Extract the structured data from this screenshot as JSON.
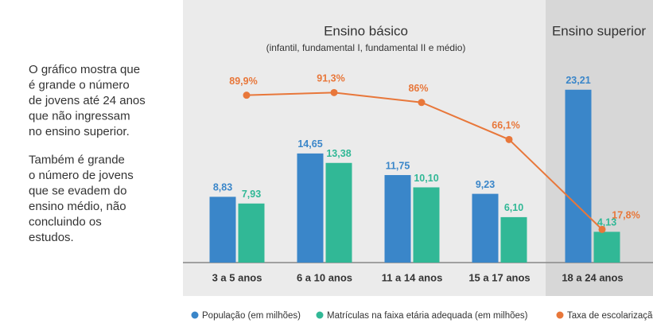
{
  "sidebar": {
    "paragraphs": [
      [
        "O gráfico mostra que",
        "é grande o número",
        "de jovens até 24 anos",
        "que não ingressam",
        "no ensino superior."
      ],
      [
        "Também é grande",
        "o número de jovens",
        "que se evadem do",
        "ensino médio, não",
        "concluindo os",
        "estudos."
      ]
    ]
  },
  "chart_data": {
    "type": "bar",
    "groups": [
      {
        "label": "Ensino básico",
        "subtitle": "(infantil, fundamental I, fundamental II e médio)"
      },
      {
        "label": "Ensino superior"
      }
    ],
    "categories": [
      "3 a 5 anos",
      "6 a 10 anos",
      "11 a 14 anos",
      "15 a 17 anos",
      "18 a 24 anos"
    ],
    "series": [
      {
        "name": "População (em milhões)",
        "color": "#3a86c9",
        "type": "bar",
        "values": [
          8.83,
          14.65,
          11.75,
          9.23,
          23.21
        ],
        "value_labels": [
          "8,83",
          "14,65",
          "11,75",
          "9,23",
          "23,21"
        ]
      },
      {
        "name": "Matrículas na faixa etária adequada (em milhões)",
        "color": "#31b896",
        "type": "bar",
        "values": [
          7.93,
          13.38,
          10.1,
          6.1,
          4.13
        ],
        "value_labels": [
          "7,93",
          "13,38",
          "10,10",
          "6,10",
          "4,13"
        ]
      },
      {
        "name": "Taxa de escolarização",
        "color": "#e8773a",
        "type": "line",
        "axis": "y2",
        "values": [
          89.9,
          91.3,
          86,
          66.1,
          17.8
        ],
        "value_labels": [
          "89,9%",
          "91,3%",
          "86%",
          "66,1%",
          "17,8%"
        ]
      }
    ],
    "ylim": [
      0,
      25
    ],
    "y2lim": [
      0,
      100
    ]
  }
}
